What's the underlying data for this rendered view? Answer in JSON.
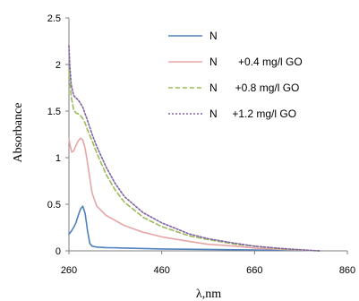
{
  "chart_data": {
    "type": "line",
    "xlabel": "λ,nm",
    "ylabel": "Absorbance",
    "xlim": [
      260,
      860
    ],
    "ylim": [
      0,
      2.5
    ],
    "xticks": [
      "260",
      "460",
      "660",
      "860"
    ],
    "yticks": [
      "0",
      "0.5",
      "1",
      "1.5",
      "2",
      "2.5"
    ],
    "grid": false,
    "legend_position": "top-right",
    "series": [
      {
        "name": "N",
        "color": "#4f81bd",
        "dash": "solid",
        "x": [
          260,
          265,
          270,
          275,
          280,
          285,
          290,
          295,
          300,
          305,
          310,
          320,
          340,
          380,
          460,
          560,
          660,
          760,
          800
        ],
        "y": [
          0.18,
          0.21,
          0.25,
          0.3,
          0.38,
          0.45,
          0.48,
          0.4,
          0.22,
          0.08,
          0.05,
          0.04,
          0.035,
          0.03,
          0.02,
          0.015,
          0.01,
          0.005,
          0
        ]
      },
      {
        "name": "N       +0.4 mg/l GO",
        "color": "#e6a6a8",
        "dash": "solid",
        "x": [
          260,
          263,
          266,
          270,
          275,
          280,
          285,
          290,
          295,
          300,
          305,
          310,
          320,
          340,
          380,
          420,
          460,
          520,
          560,
          620,
          660,
          720,
          760,
          800
        ],
        "y": [
          1.2,
          1.12,
          1.06,
          1.07,
          1.13,
          1.18,
          1.21,
          1.19,
          1.1,
          0.95,
          0.78,
          0.62,
          0.48,
          0.38,
          0.27,
          0.2,
          0.15,
          0.1,
          0.07,
          0.05,
          0.03,
          0.015,
          0.008,
          0
        ]
      },
      {
        "name": "N      +0.8 mg/l GO",
        "color": "#9bbb59",
        "dash": "dashed",
        "x": [
          260,
          262,
          265,
          270,
          275,
          280,
          285,
          290,
          295,
          300,
          310,
          320,
          340,
          360,
          380,
          420,
          460,
          520,
          560,
          620,
          660,
          720,
          760,
          800
        ],
        "y": [
          1.95,
          1.82,
          1.65,
          1.52,
          1.48,
          1.47,
          1.45,
          1.42,
          1.37,
          1.3,
          1.18,
          1.05,
          0.82,
          0.65,
          0.52,
          0.36,
          0.26,
          0.16,
          0.12,
          0.07,
          0.05,
          0.02,
          0.01,
          0
        ]
      },
      {
        "name": "N     +1.2 mg/l GO",
        "color": "#8064a2",
        "dash": "dotted",
        "x": [
          260,
          262,
          265,
          270,
          275,
          280,
          285,
          290,
          295,
          300,
          310,
          320,
          340,
          360,
          380,
          420,
          460,
          520,
          560,
          620,
          660,
          720,
          760,
          800
        ],
        "y": [
          2.2,
          1.98,
          1.78,
          1.67,
          1.64,
          1.62,
          1.58,
          1.54,
          1.47,
          1.4,
          1.25,
          1.12,
          0.9,
          0.72,
          0.58,
          0.41,
          0.3,
          0.18,
          0.13,
          0.08,
          0.05,
          0.025,
          0.012,
          0
        ]
      }
    ]
  }
}
